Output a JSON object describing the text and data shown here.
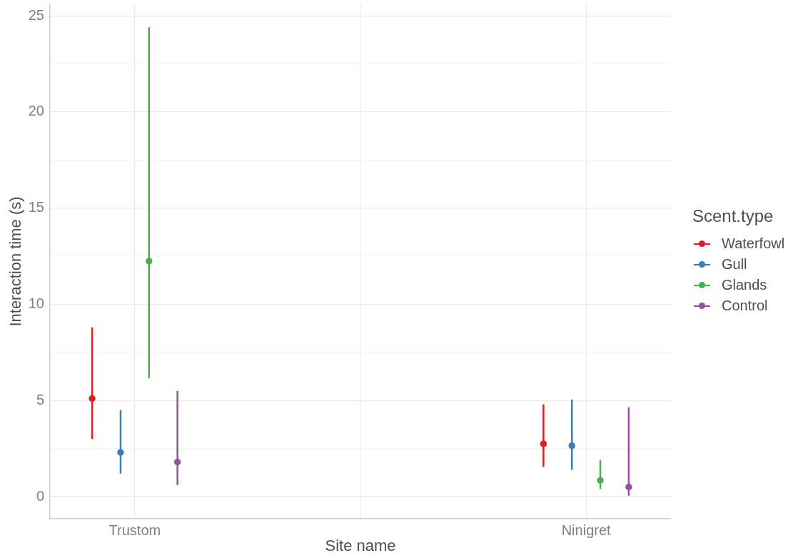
{
  "chart_data": {
    "type": "scatter",
    "xlabel": "Site name",
    "ylabel": "Interaction time (s)",
    "legend_title": "Scent.type",
    "categories": [
      "Trustom",
      "Ninigret"
    ],
    "series": [
      {
        "name": "Waterfowl",
        "color": "#e41a1c",
        "values": [
          5.1,
          2.75
        ],
        "errors": [
          [
            3.0,
            8.8
          ],
          [
            1.55,
            4.8
          ]
        ]
      },
      {
        "name": "Gull",
        "color": "#377eb8",
        "values": [
          2.3,
          2.65
        ],
        "errors": [
          [
            1.2,
            4.5
          ],
          [
            1.4,
            5.05
          ]
        ]
      },
      {
        "name": "Glands",
        "color": "#4daf4a",
        "values": [
          12.25,
          0.85
        ],
        "errors": [
          [
            6.15,
            24.4
          ],
          [
            0.4,
            1.9
          ]
        ]
      },
      {
        "name": "Control",
        "color": "#984ea3",
        "values": [
          1.8,
          0.5
        ],
        "errors": [
          [
            0.6,
            5.5
          ],
          [
            0.05,
            4.65
          ]
        ]
      }
    ],
    "ylim": [
      -1.15,
      25.6
    ],
    "yticks": [
      0,
      {
        "value": 2.5,
        "label": null
      },
      5,
      {
        "value": 7.5,
        "label": null
      },
      10,
      {
        "value": 12.5,
        "label": null
      },
      15,
      {
        "value": 17.5,
        "label": null
      },
      20,
      {
        "value": 22.5,
        "label": null
      },
      25
    ],
    "grid": true,
    "legend": "right",
    "marker": "circle"
  }
}
